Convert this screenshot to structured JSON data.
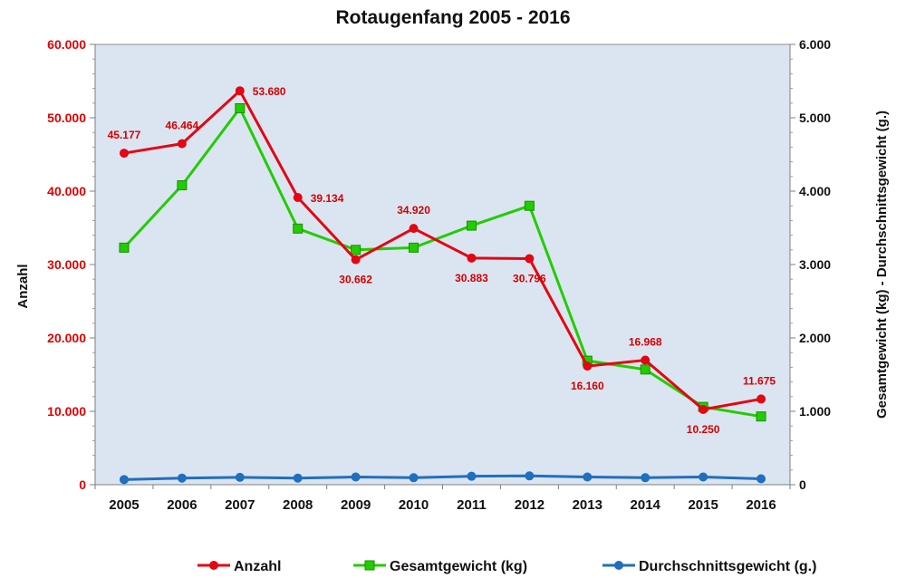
{
  "chart_data": {
    "type": "line",
    "title": "Rotaugenfang 2005 - 2016",
    "categories": [
      "2005",
      "2006",
      "2007",
      "2008",
      "2009",
      "2010",
      "2011",
      "2012",
      "2013",
      "2014",
      "2015",
      "2016"
    ],
    "left_axis": {
      "label": "Anzahl",
      "ylim": [
        0,
        60000
      ],
      "tick_labels": [
        "0",
        "10.000",
        "20.000",
        "30.000",
        "40.000",
        "50.000",
        "60.000"
      ],
      "color": "#e00000"
    },
    "right_axis": {
      "label": "Gesamtgewicht (kg) - Durchschnittsgewicht (g.)",
      "ylim": [
        0,
        6000
      ],
      "tick_labels": [
        "0",
        "1.000",
        "2.000",
        "3.000",
        "4.000",
        "5.000",
        "6.000"
      ]
    },
    "series": [
      {
        "name": "Anzahl",
        "axis": "left",
        "color": "#e30613",
        "marker": "circle",
        "values": [
          45177,
          46464,
          53680,
          39134,
          30662,
          34920,
          30883,
          30796,
          16160,
          16968,
          10250,
          11675
        ],
        "data_labels": [
          "45.177",
          "46.464",
          "53.680",
          "39.134",
          "30.662",
          "34.920",
          "30.883",
          "30.796",
          "16.160",
          "16.968",
          "10.250",
          "11.675"
        ]
      },
      {
        "name": "Gesamtgewicht (kg)",
        "axis": "right",
        "color": "#22cc00",
        "marker": "square",
        "values": [
          3230,
          4080,
          5130,
          3490,
          3200,
          3230,
          3530,
          3800,
          1690,
          1570,
          1060,
          930
        ]
      },
      {
        "name": "Durchschnittsgewicht (g.)",
        "axis": "right",
        "color": "#1f6fc0",
        "marker": "circle",
        "values": [
          70,
          90,
          100,
          90,
          105,
          95,
          115,
          120,
          105,
          95,
          105,
          80
        ]
      }
    ],
    "grid": false,
    "plot_background": "#dbe5f1",
    "legend_position": "bottom"
  }
}
